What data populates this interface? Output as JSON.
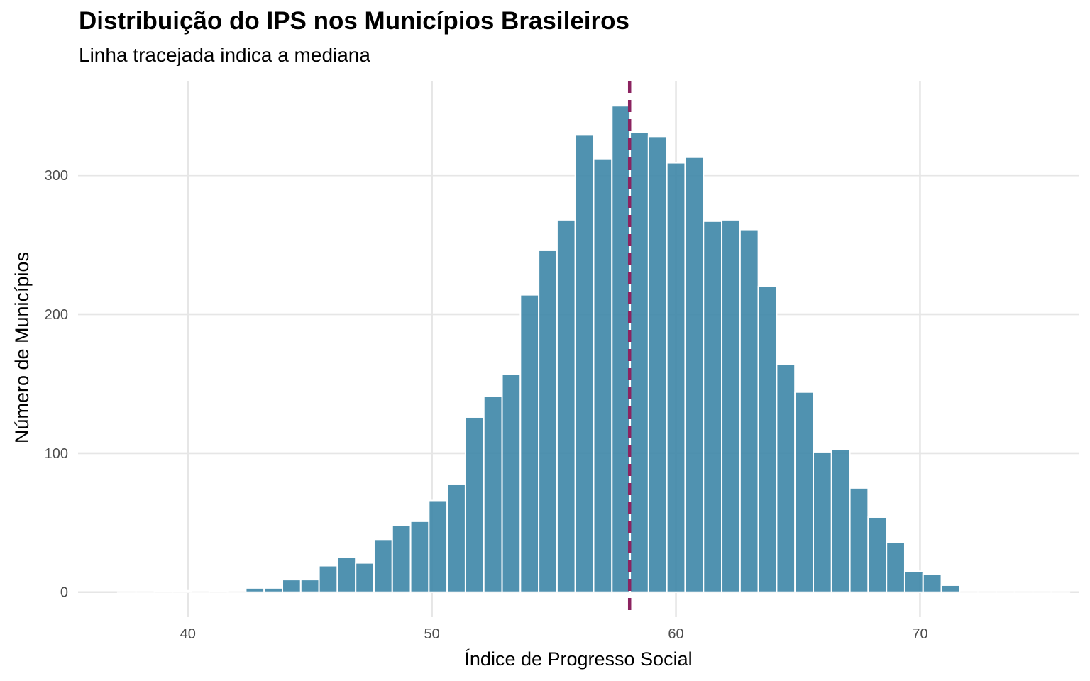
{
  "chart_data": {
    "type": "bar",
    "title": "Distribuição do IPS nos Municípios Brasileiros",
    "subtitle": "Linha tracejada indica a mediana",
    "xlabel": "Índice de Progresso Social",
    "ylabel": "Número de Municípios",
    "xlim": [
      35.5,
      76.5
    ],
    "ylim": [
      -18,
      368
    ],
    "x_ticks": [
      40,
      50,
      60,
      70
    ],
    "y_ticks": [
      0,
      100,
      200,
      300
    ],
    "bin_width": 0.75,
    "bins_start": 37.125,
    "values": [
      0,
      0,
      1,
      1,
      0,
      1,
      0,
      3,
      3,
      9,
      9,
      19,
      25,
      21,
      38,
      48,
      51,
      66,
      78,
      126,
      141,
      157,
      214,
      246,
      268,
      329,
      312,
      350,
      331,
      328,
      309,
      313,
      267,
      268,
      261,
      220,
      164,
      144,
      101,
      103,
      75,
      54,
      36,
      15,
      13,
      5,
      0,
      0,
      0,
      0,
      0,
      0
    ],
    "median": 58.1,
    "grid": true,
    "legend": "none",
    "colors": {
      "bar": "#3d86a7",
      "bar_outline": "#ffffff",
      "median_line": "#8b2360",
      "grid": "#e6e6e6"
    }
  }
}
